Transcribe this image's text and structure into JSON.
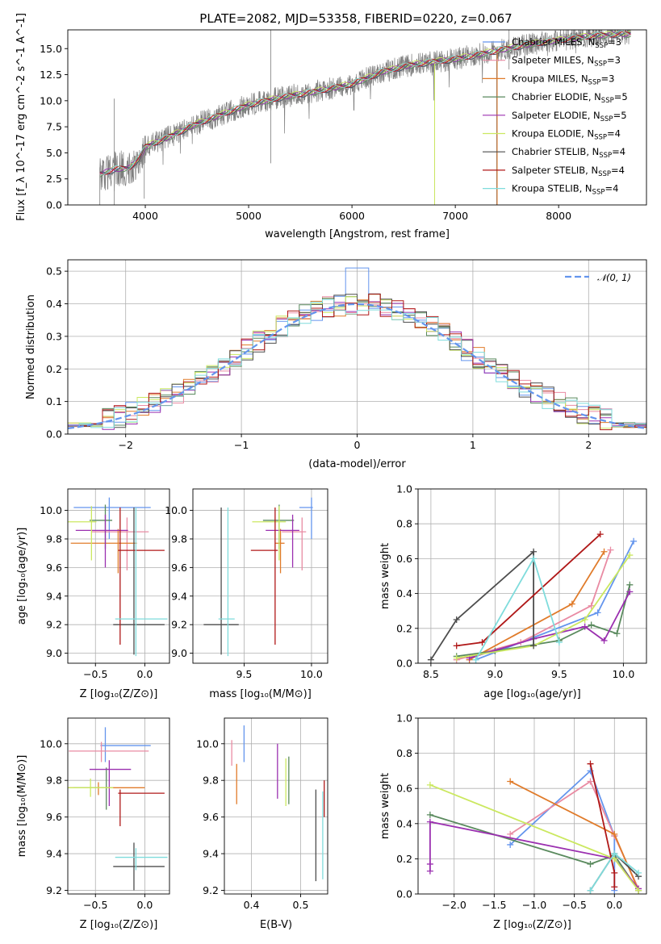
{
  "colors": {
    "Chabrier MILES": "#6495ED",
    "Salpeter MILES": "#E98BA3",
    "Kroupa MILES": "#E07B2A",
    "Chabrier ELODIE": "#5A8A5E",
    "Salpeter ELODIE": "#9B30B0",
    "Kroupa ELODIE": "#CBE860",
    "Chabrier STELIB": "#4D4D4D",
    "Salpeter STELIB": "#B01818",
    "Kroupa STELIB": "#7FDCDC",
    "data": "#7f7f7f"
  },
  "chart_data": [
    {
      "id": "spectrum",
      "type": "line",
      "title": "PLATE=2082, MJD=53358, FIBERID=0220, z=0.067",
      "xlabel": "wavelength [Angstrom, rest frame]",
      "ylabel": "Flux [f_λ 10^-17 erg cm^-2 s^-1 A^-1]",
      "xlim": [
        3250,
        8850
      ],
      "ylim": [
        0,
        16.8
      ],
      "xticks": [
        "4000",
        "5000",
        "6000",
        "7000",
        "8000"
      ],
      "yticks": [
        "0.0",
        "2.5",
        "5.0",
        "7.5",
        "10.0",
        "12.5",
        "15.0"
      ],
      "grid": false,
      "legend_position": "top-right",
      "legend": [
        {
          "model": "Chabrier MILES",
          "label": "Chabrier MILES, N",
          "sub": "SSP",
          "suffix": "=3"
        },
        {
          "model": "Salpeter MILES",
          "label": "Salpeter MILES, N",
          "sub": "SSP",
          "suffix": "=3"
        },
        {
          "model": "Kroupa MILES",
          "label": "Kroupa MILES, N",
          "sub": "SSP",
          "suffix": "=3"
        },
        {
          "model": "Chabrier ELODIE",
          "label": "Chabrier ELODIE, N",
          "sub": "SSP",
          "suffix": "=5"
        },
        {
          "model": "Salpeter ELODIE",
          "label": "Salpeter ELODIE, N",
          "sub": "SSP",
          "suffix": "=5"
        },
        {
          "model": "Kroupa ELODIE",
          "label": "Kroupa ELODIE, N",
          "sub": "SSP",
          "suffix": "=4"
        },
        {
          "model": "Chabrier STELIB",
          "label": "Chabrier STELIB, N",
          "sub": "SSP",
          "suffix": "=4"
        },
        {
          "model": "Salpeter STELIB",
          "label": "Salpeter STELIB, N",
          "sub": "SSP",
          "suffix": "=4"
        },
        {
          "model": "Kroupa STELIB",
          "label": "Kroupa STELIB, N",
          "sub": "SSP",
          "suffix": "=4"
        }
      ],
      "continuum": [
        [
          3560,
          3.0
        ],
        [
          3700,
          3.4
        ],
        [
          3850,
          3.6
        ],
        [
          3950,
          4.6
        ],
        [
          4000,
          5.6
        ],
        [
          4200,
          6.4
        ],
        [
          4500,
          7.8
        ],
        [
          4800,
          8.9
        ],
        [
          5000,
          9.6
        ],
        [
          5300,
          10.3
        ],
        [
          5600,
          10.8
        ],
        [
          6000,
          11.6
        ],
        [
          6300,
          12.8
        ],
        [
          6600,
          13.5
        ],
        [
          7000,
          14.0
        ],
        [
          7400,
          14.8
        ],
        [
          7700,
          15.4
        ],
        [
          8000,
          15.8
        ],
        [
          8300,
          16.2
        ],
        [
          8600,
          16.4
        ]
      ]
    },
    {
      "id": "residuals",
      "type": "histogram",
      "xlabel": "(data-model)/error",
      "ylabel": "Normed distribution",
      "xlim": [
        -2.5,
        2.5
      ],
      "ylim": [
        0,
        0.535
      ],
      "xticks": [
        "−2",
        "−1",
        "0",
        "1",
        "2"
      ],
      "yticks": [
        "0.0",
        "0.1",
        "0.2",
        "0.3",
        "0.4",
        "0.5"
      ],
      "grid": true,
      "legend_position": "top-right",
      "legend": [
        {
          "label": "𝒩(0, 1)",
          "style": "dashed",
          "color": "#6495ED"
        }
      ]
    },
    {
      "id": "age_vs_Z",
      "type": "errorbar",
      "xlabel": "Z [log₁₀(Z/Z⊙)]",
      "ylabel": "age  [log₁₀(age/yr)]",
      "xlim": [
        -0.78,
        0.25
      ],
      "ylim": [
        8.93,
        10.15
      ],
      "xticks": [
        "−0.5",
        "0.0"
      ],
      "yticks": [
        "9.0",
        "9.2",
        "9.4",
        "9.6",
        "9.8",
        "10.0"
      ],
      "points": [
        {
          "model": "Chabrier MILES",
          "x": -0.36,
          "xerr": [
            0.36,
            0.42
          ],
          "y": 10.02,
          "yerr": [
            0.22,
            0.07
          ]
        },
        {
          "model": "Salpeter MILES",
          "x": -0.18,
          "xerr": [
            0.36,
            0.22
          ],
          "y": 9.85,
          "yerr": [
            0.27,
            0.1
          ]
        },
        {
          "model": "Kroupa MILES",
          "x": -0.27,
          "xerr": [
            0.48,
            0.19
          ],
          "y": 9.77,
          "yerr": [
            0.21,
            0.1
          ]
        },
        {
          "model": "Chabrier ELODIE",
          "x": -0.4,
          "xerr": [
            0.16,
            0.07
          ],
          "y": 9.93,
          "yerr": [
            0.2,
            0.11
          ]
        },
        {
          "model": "Salpeter ELODIE",
          "x": -0.4,
          "xerr": [
            0.3,
            0.23
          ],
          "y": 9.86,
          "yerr": [
            0.26,
            0.11
          ]
        },
        {
          "model": "Kroupa ELODIE",
          "x": -0.54,
          "xerr": [
            0.24,
            0.05
          ],
          "y": 9.92,
          "yerr": [
            0.27,
            0.11
          ]
        },
        {
          "model": "Chabrier STELIB",
          "x": -0.11,
          "xerr": [
            0.21,
            0.31
          ],
          "y": 9.2,
          "yerr": [
            0.21,
            0.82
          ]
        },
        {
          "model": "Salpeter STELIB",
          "x": -0.25,
          "xerr": [
            0.02,
            0.45
          ],
          "y": 9.72,
          "yerr": [
            0.66,
            0.3
          ]
        },
        {
          "model": "Kroupa STELIB",
          "x": -0.09,
          "xerr": [
            0.21,
            0.32
          ],
          "y": 9.24,
          "yerr": [
            0.26,
            0.78
          ]
        }
      ]
    },
    {
      "id": "age_vs_mass",
      "type": "errorbar",
      "xlabel": "mass [log₁₀(M/M⊙)]",
      "ylabel": "",
      "xlim": [
        9.12,
        10.12
      ],
      "ylim": [
        8.93,
        10.15
      ],
      "xticks": [
        "9.5",
        "10.0"
      ],
      "yticks": [
        "9.0",
        "9.2",
        "9.4",
        "9.6",
        "9.8",
        "10.0"
      ],
      "points": [
        {
          "model": "Chabrier MILES",
          "x": 10.0,
          "xerr": [
            0.09,
            0.01
          ],
          "y": 10.02,
          "yerr": [
            0.22,
            0.07
          ]
        },
        {
          "model": "Salpeter MILES",
          "x": 9.93,
          "xerr": [
            0.15,
            0.03
          ],
          "y": 9.85,
          "yerr": [
            0.27,
            0.1
          ]
        },
        {
          "model": "Kroupa MILES",
          "x": 9.77,
          "xerr": [
            0.04,
            0.03
          ],
          "y": 9.77,
          "yerr": [
            0.21,
            0.1
          ]
        },
        {
          "model": "Chabrier ELODIE",
          "x": 9.76,
          "xerr": [
            0.12,
            0.11
          ],
          "y": 9.93,
          "yerr": [
            0.2,
            0.11
          ]
        },
        {
          "model": "Salpeter ELODIE",
          "x": 9.86,
          "xerr": [
            0.2,
            0.05
          ],
          "y": 9.86,
          "yerr": [
            0.26,
            0.11
          ]
        },
        {
          "model": "Kroupa ELODIE",
          "x": 9.76,
          "xerr": [
            0.2,
            0.05
          ],
          "y": 9.92,
          "yerr": [
            0.27,
            0.11
          ]
        },
        {
          "model": "Chabrier STELIB",
          "x": 9.33,
          "xerr": [
            0.13,
            0.13
          ],
          "y": 9.2,
          "yerr": [
            0.21,
            0.82
          ]
        },
        {
          "model": "Salpeter STELIB",
          "x": 9.73,
          "xerr": [
            0.18,
            0.02
          ],
          "y": 9.72,
          "yerr": [
            0.66,
            0.3
          ]
        },
        {
          "model": "Kroupa STELIB",
          "x": 9.38,
          "xerr": [
            0.07,
            0.05
          ],
          "y": 9.24,
          "yerr": [
            0.26,
            0.78
          ]
        }
      ]
    },
    {
      "id": "weight_vs_age",
      "type": "line",
      "xlabel": "age  [log₁₀(age/yr)]",
      "ylabel": "mass weight",
      "xlim": [
        8.4,
        10.18
      ],
      "ylim": [
        0,
        1.0
      ],
      "xticks": [
        "8.5",
        "9.0",
        "9.5",
        "10.0"
      ],
      "yticks": [
        "0.0",
        "0.2",
        "0.4",
        "0.6",
        "0.8",
        "1.0"
      ],
      "grid": true,
      "series": [
        {
          "model": "Chabrier MILES",
          "x": [
            8.85,
            9.8,
            10.08
          ],
          "y": [
            0.02,
            0.29,
            0.7
          ]
        },
        {
          "model": "Salpeter MILES",
          "x": [
            8.7,
            9.2,
            9.75,
            9.9
          ],
          "y": [
            0.02,
            0.12,
            0.33,
            0.65
          ]
        },
        {
          "model": "Kroupa MILES",
          "x": [
            8.8,
            9.6,
            9.85
          ],
          "y": [
            0.02,
            0.34,
            0.64
          ]
        },
        {
          "model": "Chabrier ELODIE",
          "x": [
            8.7,
            9.0,
            9.5,
            9.75,
            9.95,
            10.05
          ],
          "y": [
            0.04,
            0.07,
            0.13,
            0.22,
            0.17,
            0.45
          ]
        },
        {
          "model": "Salpeter ELODIE",
          "x": [
            8.8,
            9.3,
            9.7,
            9.85,
            10.05
          ],
          "y": [
            0.03,
            0.14,
            0.21,
            0.13,
            0.41
          ]
        },
        {
          "model": "Kroupa ELODIE",
          "x": [
            8.7,
            9.3,
            9.7,
            10.05
          ],
          "y": [
            0.03,
            0.1,
            0.25,
            0.62
          ]
        },
        {
          "model": "Chabrier STELIB",
          "x": [
            8.5,
            8.7,
            9.3,
            9.3
          ],
          "y": [
            0.02,
            0.25,
            0.64,
            0.1
          ]
        },
        {
          "model": "Salpeter STELIB",
          "x": [
            8.7,
            8.9,
            9.82
          ],
          "y": [
            0.1,
            0.12,
            0.74
          ]
        },
        {
          "model": "Kroupa STELIB",
          "x": [
            8.85,
            9.3,
            9.5
          ],
          "y": [
            0.02,
            0.6,
            0.12
          ]
        }
      ]
    },
    {
      "id": "mass_vs_Z",
      "type": "errorbar",
      "xlabel": "Z [log₁₀(Z/Z⊙)]",
      "ylabel": "mass [log₁₀(M/M⊙)]",
      "xlim": [
        -0.78,
        0.25
      ],
      "ylim": [
        9.18,
        10.14
      ],
      "xticks": [
        "−0.5",
        "0.0"
      ],
      "yticks": [
        "9.2",
        "9.4",
        "9.6",
        "9.8",
        "10.0"
      ],
      "points": [
        {
          "model": "Chabrier MILES",
          "x": -0.4,
          "xerr": [
            0.05,
            0.46
          ],
          "y": 9.99,
          "yerr": [
            0.09,
            0.1
          ]
        },
        {
          "model": "Salpeter MILES",
          "x": -0.44,
          "xerr": [
            0.33,
            0.48
          ],
          "y": 9.96,
          "yerr": [
            0.06,
            0.05
          ]
        },
        {
          "model": "Kroupa MILES",
          "x": -0.47,
          "xerr": [
            0.3,
            0.47
          ],
          "y": 9.76,
          "yerr": [
            0.04,
            0.03
          ]
        },
        {
          "model": "Chabrier ELODIE",
          "x": -0.39,
          "xerr": [
            0.33,
            0.02
          ],
          "y": 9.76,
          "yerr": [
            0.12,
            0.11
          ]
        },
        {
          "model": "Salpeter ELODIE",
          "x": -0.36,
          "xerr": [
            0.2,
            0.22
          ],
          "y": 9.86,
          "yerr": [
            0.2,
            0.05
          ]
        },
        {
          "model": "Kroupa ELODIE",
          "x": -0.55,
          "xerr": [
            0.23,
            0.23
          ],
          "y": 9.76,
          "yerr": [
            0.05,
            0.05
          ]
        },
        {
          "model": "Chabrier STELIB",
          "x": -0.11,
          "xerr": [
            0.21,
            0.31
          ],
          "y": 9.33,
          "yerr": [
            0.13,
            0.13
          ]
        },
        {
          "model": "Salpeter STELIB",
          "x": -0.25,
          "xerr": [
            0.02,
            0.45
          ],
          "y": 9.73,
          "yerr": [
            0.18,
            0.02
          ]
        },
        {
          "model": "Kroupa STELIB",
          "x": -0.09,
          "xerr": [
            0.21,
            0.32
          ],
          "y": 9.38,
          "yerr": [
            0.07,
            0.05
          ]
        }
      ]
    },
    {
      "id": "mass_vs_ebv",
      "type": "errorbar",
      "xlabel": "E(B-V)",
      "ylabel": "",
      "xlim": [
        0.345,
        0.555
      ],
      "ylim": [
        9.18,
        10.14
      ],
      "xticks": [
        "0.4",
        "0.5"
      ],
      "yticks": [
        "9.2",
        "9.4",
        "9.6",
        "9.8",
        "10.0"
      ],
      "points": [
        {
          "model": "Chabrier MILES",
          "x": 0.385,
          "y": 10.0,
          "yerr": [
            0.1,
            0.1
          ]
        },
        {
          "model": "Salpeter MILES",
          "x": 0.36,
          "y": 9.92,
          "yerr": [
            0.04,
            0.1
          ]
        },
        {
          "model": "Kroupa MILES",
          "x": 0.37,
          "y": 9.79,
          "yerr": [
            0.12,
            0.1
          ]
        },
        {
          "model": "Chabrier ELODIE",
          "x": 0.476,
          "y": 9.79,
          "yerr": [
            0.12,
            0.14
          ]
        },
        {
          "model": "Salpeter ELODIE",
          "x": 0.453,
          "y": 9.84,
          "yerr": [
            0.14,
            0.16
          ]
        },
        {
          "model": "Kroupa ELODIE",
          "x": 0.47,
          "y": 9.78,
          "yerr": [
            0.12,
            0.14
          ]
        },
        {
          "model": "Chabrier STELIB",
          "x": 0.531,
          "y": 9.5,
          "yerr": [
            0.25,
            0.25
          ]
        },
        {
          "model": "Salpeter STELIB",
          "x": 0.548,
          "y": 9.74,
          "yerr": [
            0.14,
            0.06
          ]
        },
        {
          "model": "Kroupa STELIB",
          "x": 0.545,
          "y": 9.5,
          "yerr": [
            0.24,
            0.24
          ]
        }
      ]
    },
    {
      "id": "weight_vs_Z",
      "type": "line",
      "xlabel": "Z [log₁₀(Z/Z⊙)]",
      "ylabel": "mass weight",
      "xlim": [
        -2.45,
        0.4
      ],
      "ylim": [
        0,
        1.0
      ],
      "xticks": [
        "−2.0",
        "−1.5",
        "−1.0",
        "−0.5",
        "0.0"
      ],
      "yticks": [
        "0.0",
        "0.2",
        "0.4",
        "0.6",
        "0.8",
        "1.0"
      ],
      "grid": true,
      "series": [
        {
          "model": "Chabrier MILES",
          "x": [
            -1.3,
            -0.3,
            0.0,
            0.0
          ],
          "y": [
            0.28,
            0.7,
            0.33,
            0.02
          ]
        },
        {
          "model": "Salpeter MILES",
          "x": [
            -1.3,
            -0.3,
            0.0,
            0.3
          ],
          "y": [
            0.34,
            0.64,
            0.33,
            0.03
          ]
        },
        {
          "model": "Kroupa MILES",
          "x": [
            -1.3,
            0.0,
            0.3
          ],
          "y": [
            0.64,
            0.34,
            0.02
          ]
        },
        {
          "model": "Chabrier ELODIE",
          "x": [
            -2.3,
            -0.3,
            0.0,
            0.3
          ],
          "y": [
            0.45,
            0.17,
            0.22,
            0.02
          ]
        },
        {
          "model": "Salpeter ELODIE",
          "x": [
            -2.3,
            -2.3,
            -2.3,
            0.0,
            0.3
          ],
          "y": [
            0.13,
            0.17,
            0.41,
            0.2,
            0.03
          ]
        },
        {
          "model": "Kroupa ELODIE",
          "x": [
            -2.3,
            0.0,
            0.3
          ],
          "y": [
            0.62,
            0.2,
            0.02
          ]
        },
        {
          "model": "Chabrier STELIB",
          "x": [
            -0.3,
            0.0,
            0.3
          ],
          "y": [
            0.02,
            0.23,
            0.1
          ]
        },
        {
          "model": "Salpeter STELIB",
          "x": [
            -0.3,
            0.0,
            0.0
          ],
          "y": [
            0.74,
            0.12,
            0.04
          ]
        },
        {
          "model": "Kroupa STELIB",
          "x": [
            -0.3,
            0.0,
            0.3
          ],
          "y": [
            0.02,
            0.23,
            0.12
          ]
        }
      ]
    }
  ]
}
